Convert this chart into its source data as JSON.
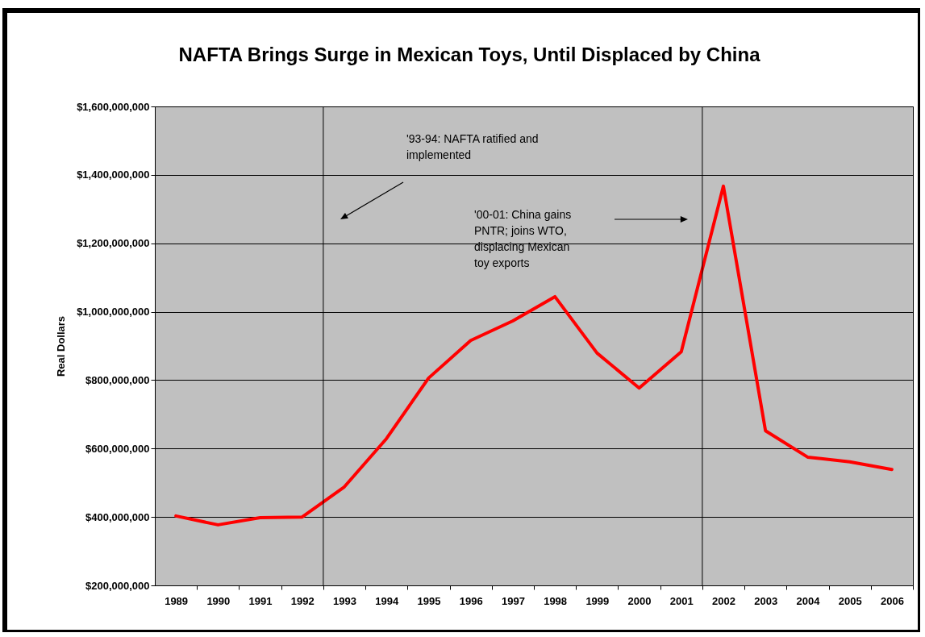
{
  "chart_data": {
    "type": "line",
    "title": "NAFTA Brings Surge in Mexican Toys, Until Displaced by China",
    "ylabel": "Real Dollars",
    "x": [
      1989,
      1990,
      1991,
      1992,
      1993,
      1994,
      1995,
      1996,
      1997,
      1998,
      1999,
      2000,
      2001,
      2002,
      2003,
      2004,
      2005,
      2006
    ],
    "series": [
      {
        "color": "#ff0000",
        "values": [
          403000000,
          377000000,
          398000000,
          400000000,
          488000000,
          629000000,
          806000000,
          916000000,
          973000000,
          1044000000,
          879000000,
          777000000,
          883000000,
          1367000000,
          652000000,
          575000000,
          561000000,
          539000000
        ]
      }
    ],
    "xlim": [
      1988.5,
      2006.5
    ],
    "xticks": [
      1989,
      1990,
      1991,
      1992,
      1993,
      1994,
      1995,
      1996,
      1997,
      1998,
      1999,
      2000,
      2001,
      2002,
      2003,
      2004,
      2005,
      2006
    ],
    "ylim": [
      200000000,
      1600000000
    ],
    "yticks": [
      {
        "value": 200000000,
        "label": "$200,000,000"
      },
      {
        "value": 400000000,
        "label": "$400,000,000"
      },
      {
        "value": 600000000,
        "label": "$600,000,000"
      },
      {
        "value": 800000000,
        "label": "$800,000,000"
      },
      {
        "value": 1000000000,
        "label": "$1,000,000,000"
      },
      {
        "value": 1200000000,
        "label": "$1,200,000,000"
      },
      {
        "value": 1400000000,
        "label": "$1,400,000,000"
      },
      {
        "value": 1600000000,
        "label": "$1,600,000,000"
      }
    ],
    "grid": "y",
    "line_style": "solid",
    "marker": "none",
    "ref_lines": [
      {
        "axis": "x",
        "value": 1992.5,
        "color": "#000000"
      },
      {
        "axis": "x",
        "value": 2001.5,
        "color": "#000000"
      }
    ],
    "annotations": [
      "'93-94: NAFTA ratified and implemented",
      "'00-01: China gains PNTR; joins WTO, displacing Mexican toy exports"
    ]
  }
}
